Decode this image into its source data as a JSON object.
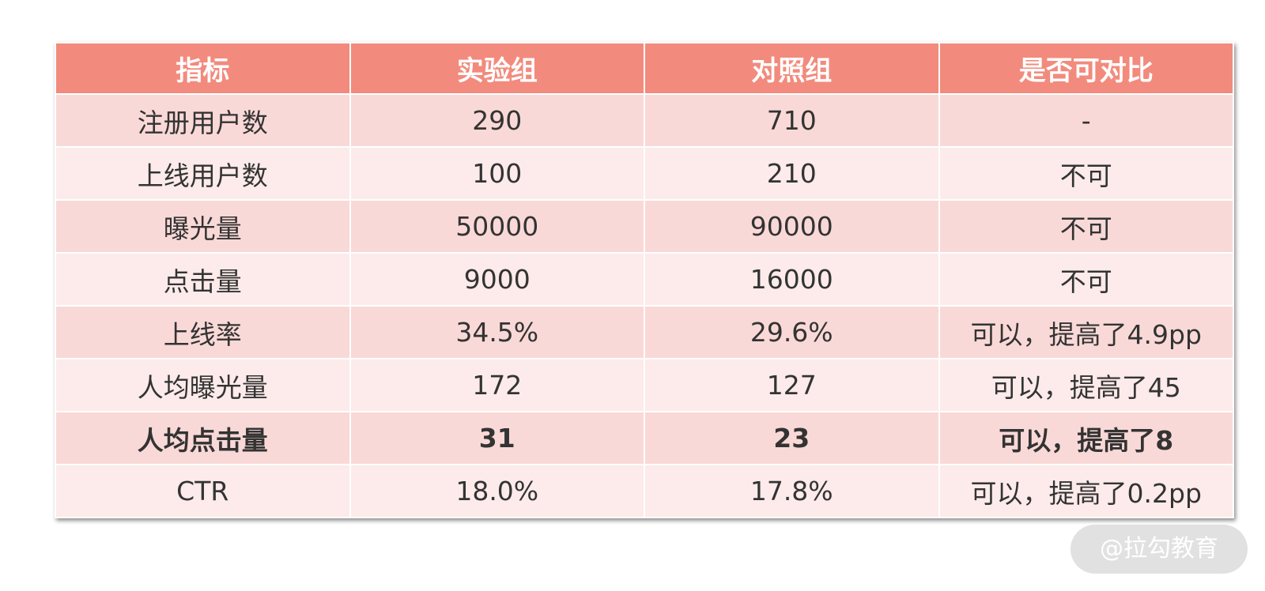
{
  "table": {
    "header": [
      "指标",
      "实验组",
      "对照组",
      "是否可对比"
    ],
    "rows": [
      [
        "注册用户数",
        "290",
        "710",
        "-"
      ],
      [
        "上线用户数",
        "100",
        "210",
        "不可"
      ],
      [
        "曝光量",
        "50000",
        "90000",
        "不可"
      ],
      [
        "点击量",
        "9000",
        "16000",
        "不可"
      ],
      [
        "上线率",
        "34.5%",
        "29.6%",
        "可以，提高了4.9pp"
      ],
      [
        "人均曝光量",
        "172",
        "127",
        "可以，提高了45"
      ],
      [
        "人均点击量",
        "31",
        "23",
        "可以，提高了8"
      ],
      [
        "CTR",
        "18.0%",
        "17.8%",
        "可以，提高了0.2pp"
      ]
    ]
  },
  "watermark": "@拉勾教育"
}
